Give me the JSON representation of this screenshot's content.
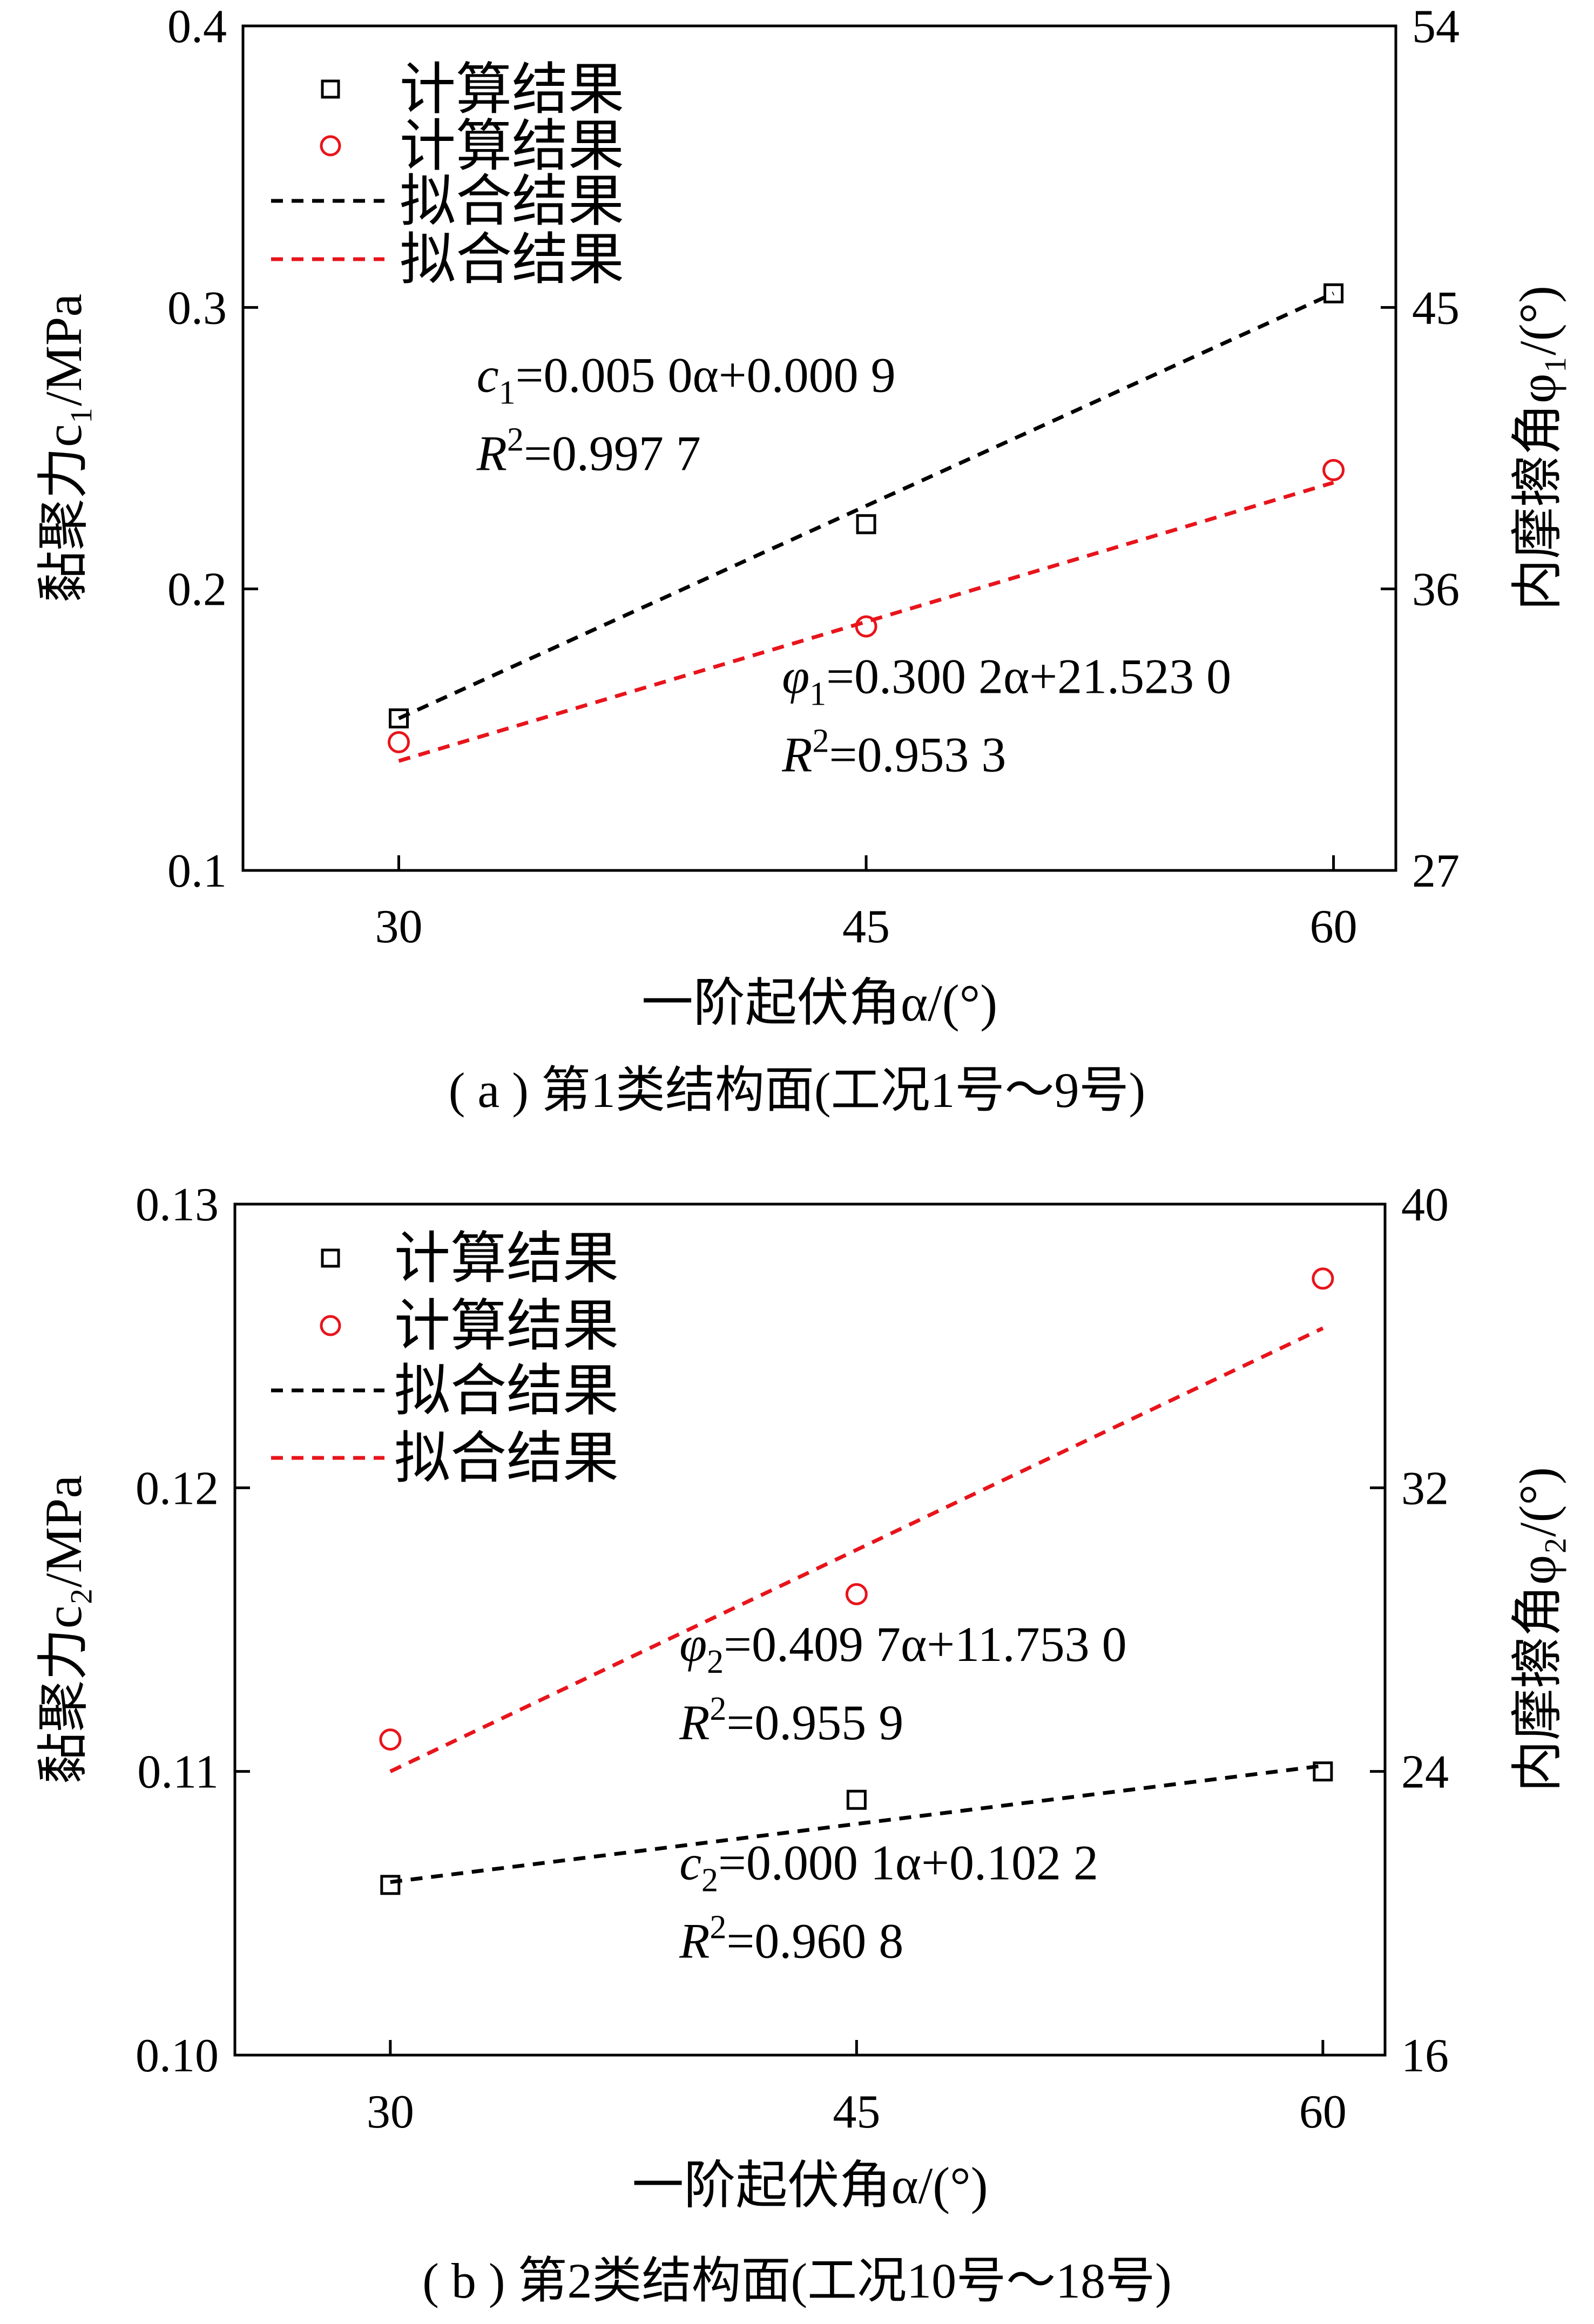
{
  "chart_data": [
    {
      "type": "scatter",
      "caption": "( a ) 第1类结构面(工况1号～9号)",
      "xlabel": "一阶起伏角α/(°)",
      "ylabel_left": "黏聚力c₁/MPa",
      "ylabel_right": "内摩擦角φ₁/(°)",
      "xlim": [
        25,
        62
      ],
      "x_ticks": [
        "30",
        "45",
        "60"
      ],
      "x_tick_values": [
        30,
        45,
        60
      ],
      "ylim_left": [
        0.1,
        0.4
      ],
      "y_ticks_left": [
        "0.1",
        "0.2",
        "0.3",
        "0.4"
      ],
      "y_tick_values_left": [
        0.1,
        0.2,
        0.3,
        0.4
      ],
      "ylim_right": [
        27,
        54
      ],
      "y_ticks_right": [
        "27",
        "36",
        "45",
        "54"
      ],
      "y_tick_values_right": [
        27,
        36,
        45,
        54
      ],
      "legend": {
        "position": "top-left",
        "entries": [
          {
            "label": "计算结果",
            "marker": "square",
            "color": "#000000"
          },
          {
            "label": "计算结果",
            "marker": "circle",
            "color": "#e8141b"
          },
          {
            "label": "拟合结果",
            "marker": "dashed-line",
            "color": "#000000"
          },
          {
            "label": "拟合结果",
            "marker": "dashed-line",
            "color": "#e8141b"
          }
        ]
      },
      "series": [
        {
          "axis": "left",
          "marker": "square",
          "color": "#000000",
          "x": [
            30,
            45,
            60
          ],
          "y": [
            0.154,
            0.223,
            0.305
          ]
        },
        {
          "axis": "right",
          "marker": "circle",
          "color": "#e8141b",
          "x": [
            30,
            45,
            60
          ],
          "y": [
            31.1,
            34.8,
            39.8
          ]
        }
      ],
      "fits": [
        {
          "axis": "left",
          "color": "#000000",
          "x": [
            30,
            60
          ],
          "y": [
            0.154,
            0.305
          ]
        },
        {
          "axis": "right",
          "color": "#e8141b",
          "x": [
            30,
            60
          ],
          "y": [
            30.5,
            39.4
          ]
        }
      ],
      "annotations": [
        {
          "var": "c",
          "sub": "1",
          "rest": "=0.005 0α+0.000 9",
          "r2": "=0.997 7",
          "x": 32.5,
          "y": 0.27
        },
        {
          "var": "φ",
          "sub": "1",
          "rest": "=0.300 2α+21.523 0",
          "r2": "=0.953 3",
          "x": 42.3,
          "y": 0.163
        }
      ]
    },
    {
      "type": "scatter",
      "caption": "( b ) 第2类结构面(工况10号～18号)",
      "xlabel": "一阶起伏角α/(°)",
      "ylabel_left": "黏聚力c₂/MPa",
      "ylabel_right": "内摩擦角φ₂/(°)",
      "xlim": [
        25,
        62
      ],
      "x_ticks": [
        "30",
        "45",
        "60"
      ],
      "x_tick_values": [
        30,
        45,
        60
      ],
      "ylim_left": [
        0.1,
        0.13
      ],
      "y_ticks_left": [
        "0.10",
        "0.11",
        "0.12",
        "0.13"
      ],
      "y_tick_values_left": [
        0.1,
        0.11,
        0.12,
        0.13
      ],
      "ylim_right": [
        16,
        40
      ],
      "y_ticks_right": [
        "16",
        "24",
        "32",
        "40"
      ],
      "y_tick_values_right": [
        16,
        24,
        32,
        40
      ],
      "legend": {
        "position": "top-left",
        "entries": [
          {
            "label": "计算结果",
            "marker": "square",
            "color": "#000000"
          },
          {
            "label": "计算结果",
            "marker": "circle",
            "color": "#e8141b"
          },
          {
            "label": "拟合结果",
            "marker": "dashed-line",
            "color": "#000000"
          },
          {
            "label": "拟合结果",
            "marker": "dashed-line",
            "color": "#e8141b"
          }
        ]
      },
      "series": [
        {
          "axis": "left",
          "marker": "square",
          "color": "#000000",
          "x": [
            30,
            45,
            60
          ],
          "y": [
            0.106,
            0.109,
            0.11
          ]
        },
        {
          "axis": "right",
          "marker": "circle",
          "color": "#e8141b",
          "x": [
            30,
            45,
            60
          ],
          "y": [
            24.9,
            29.0,
            37.9
          ]
        }
      ],
      "fits": [
        {
          "axis": "left",
          "color": "#000000",
          "x": [
            30,
            60
          ],
          "y": [
            0.1061,
            0.1102
          ]
        },
        {
          "axis": "right",
          "color": "#e8141b",
          "x": [
            30,
            60
          ],
          "y": [
            24.0,
            36.5
          ]
        }
      ],
      "annotations": [
        {
          "var": "φ",
          "sub": "2",
          "rest": "=0.409 7α+11.753 0",
          "r2": "=0.955 9",
          "x": 39.3,
          "y": 0.1139
        },
        {
          "var": "c",
          "sub": "2",
          "rest": "=0.000 1α+0.102 2",
          "r2": "=0.960 8",
          "x": 39.3,
          "y": 0.1062
        }
      ]
    }
  ]
}
